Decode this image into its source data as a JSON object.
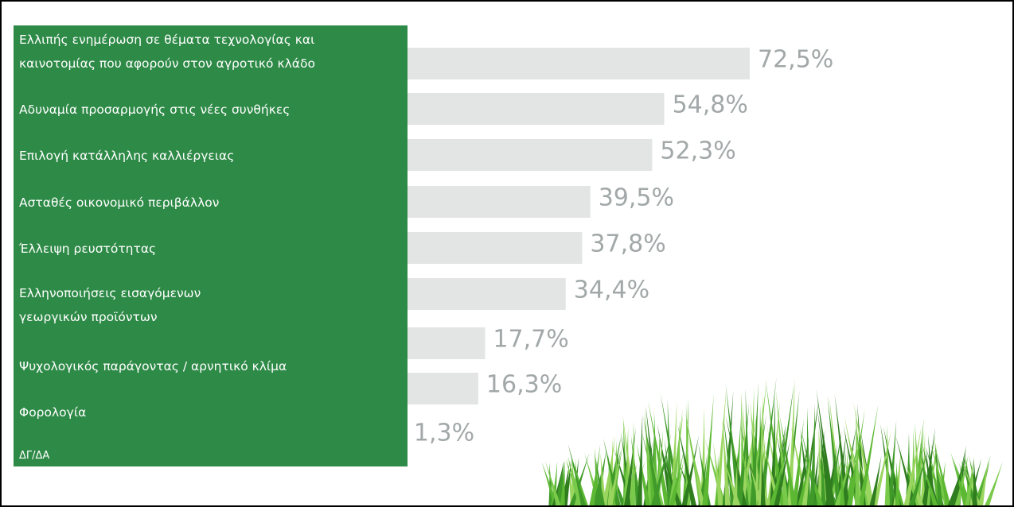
{
  "chart_data": {
    "type": "bar",
    "orientation": "horizontal",
    "categories": [
      "Ελλιπής ενημέρωση σε θέματα τεχνολογίας και\nκαινοτομίας που αφορούν στον αγροτικό κλάδο",
      "Αδυναμία προσαρμογής στις νέες συνθήκες",
      "Επιλογή κατάλληλης καλλιέργειας",
      "Ασταθές οικονομικό περιβάλλον",
      "Έλλειψη ρευστότητας",
      "Ελληνοποιήσεις εισαγόμενων\nγεωργικών προϊόντων",
      "Ψυχολογικός παράγοντας / αρνητικό κλίμα",
      "Φορολογία",
      "ΔΓ/ΔΑ"
    ],
    "values": [
      72.5,
      54.8,
      52.3,
      39.5,
      37.8,
      34.4,
      17.7,
      16.3,
      1.3
    ],
    "value_labels": [
      "72,5%",
      "54,8%",
      "52,3%",
      "39,5%",
      "37,8%",
      "34,4%",
      "17,7%",
      "16,3%",
      "1,3%"
    ],
    "color": "#e2e5e3"
  }
}
